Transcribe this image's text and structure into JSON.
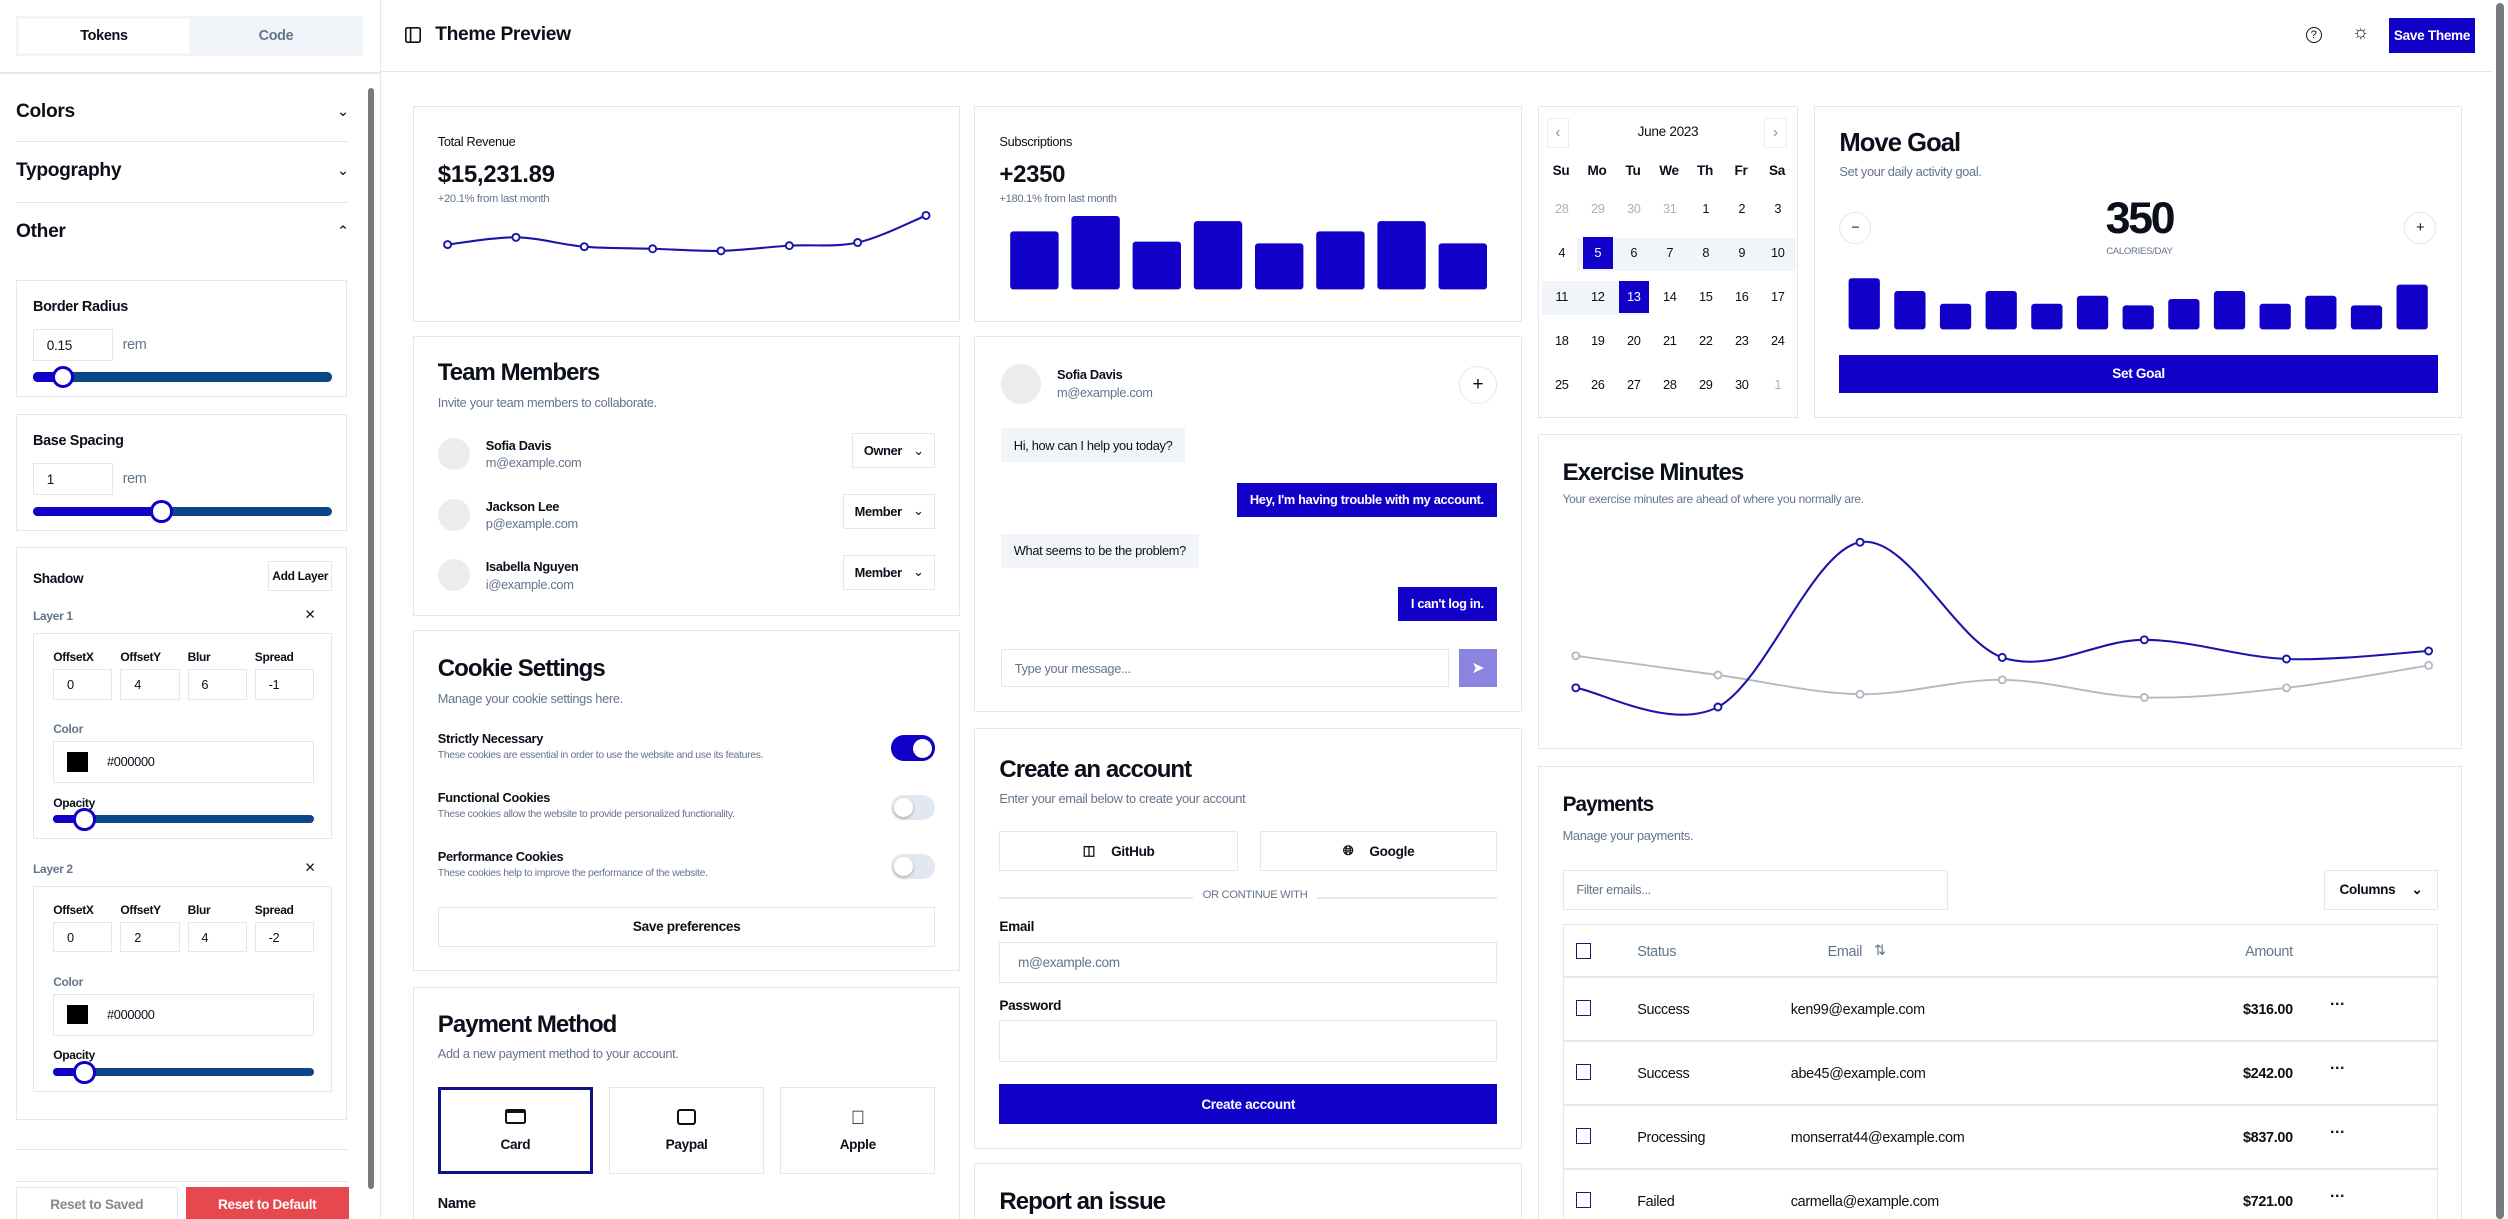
{
  "sidebar": {
    "tabs": [
      "Tokens",
      "Code"
    ],
    "sections": [
      "Colors",
      "Typography",
      "Other"
    ],
    "border_radius": {
      "label": "Border Radius",
      "value": "0.15",
      "unit": "rem",
      "slider_fraction": 0.1
    },
    "base_spacing": {
      "label": "Base Spacing",
      "value": "1",
      "unit": "rem",
      "slider_fraction": 0.43
    },
    "shadow": {
      "label": "Shadow",
      "add_layer": "Add Layer",
      "field_labels": [
        "OffsetX",
        "OffsetY",
        "Blur",
        "Spread"
      ],
      "color_label": "Color",
      "opacity_label": "Opacity",
      "layers": [
        {
          "name": "Layer 1",
          "values": [
            "0",
            "4",
            "6",
            "-1"
          ],
          "color": "#000000",
          "opacity_fraction": 0.12
        },
        {
          "name": "Layer 2",
          "values": [
            "0",
            "2",
            "4",
            "-2"
          ],
          "color": "#000000",
          "opacity_fraction": 0.12
        }
      ]
    },
    "reset_saved": "Reset to Saved",
    "reset_default": "Reset to Default"
  },
  "header": {
    "title": "Theme Preview",
    "save": "Save Theme"
  },
  "revenue": {
    "label": "Total Revenue",
    "value": "$15,231.89",
    "delta": "+20.1% from last month"
  },
  "subscriptions": {
    "label": "Subscriptions",
    "value": "+2350",
    "delta": "+180.1% from last month"
  },
  "team": {
    "title": "Team Members",
    "subtitle": "Invite your team members to collaborate.",
    "members": [
      {
        "name": "Sofia Davis",
        "email": "m@example.com",
        "role": "Owner"
      },
      {
        "name": "Jackson Lee",
        "email": "p@example.com",
        "role": "Member"
      },
      {
        "name": "Isabella Nguyen",
        "email": "i@example.com",
        "role": "Member"
      }
    ]
  },
  "cookies": {
    "title": "Cookie Settings",
    "subtitle": "Manage your cookie settings here.",
    "items": [
      {
        "title": "Strictly Necessary",
        "desc": "These cookies are essential in order to use the website and use its features.",
        "on": true
      },
      {
        "title": "Functional Cookies",
        "desc": "These cookies allow the website to provide personalized functionality.",
        "on": false
      },
      {
        "title": "Performance Cookies",
        "desc": "These cookies help to improve the performance of the website.",
        "on": false
      }
    ],
    "save": "Save preferences"
  },
  "payment_method": {
    "title": "Payment Method",
    "subtitle": "Add a new payment method to your account.",
    "options": [
      "Card",
      "Paypal",
      "Apple"
    ],
    "selected": "Card",
    "name_label": "Name"
  },
  "chat": {
    "name": "Sofia Davis",
    "email": "m@example.com",
    "messages": [
      {
        "from": "agent",
        "text": "Hi, how can I help you today?"
      },
      {
        "from": "user",
        "text": "Hey, I'm having trouble with my account."
      },
      {
        "from": "agent",
        "text": "What seems to be the problem?"
      },
      {
        "from": "user",
        "text": "I can't log in."
      }
    ],
    "placeholder": "Type your message..."
  },
  "create_account": {
    "title": "Create an account",
    "subtitle": "Enter your email below to create your account",
    "github": "GitHub",
    "google": "Google",
    "divider": "OR CONTINUE WITH",
    "email_label": "Email",
    "email_placeholder": "m@example.com",
    "password_label": "Password",
    "submit": "Create account"
  },
  "report": {
    "title": "Report an issue"
  },
  "calendar": {
    "month": "June 2023",
    "weekdays": [
      "Su",
      "Mo",
      "Tu",
      "We",
      "Th",
      "Fr",
      "Sa"
    ],
    "days": [
      "28",
      "29",
      "30",
      "31",
      "1",
      "2",
      "3",
      "4",
      "5",
      "6",
      "7",
      "8",
      "9",
      "10",
      "11",
      "12",
      "13",
      "14",
      "15",
      "16",
      "17",
      "18",
      "19",
      "20",
      "21",
      "22",
      "23",
      "24",
      "25",
      "26",
      "27",
      "28",
      "29",
      "30",
      "1"
    ],
    "selected": [
      "5",
      "13"
    ]
  },
  "move_goal": {
    "title": "Move Goal",
    "subtitle": "Set your daily activity goal.",
    "value": "350",
    "unit": "CALORIES/DAY",
    "button": "Set Goal"
  },
  "exercise": {
    "title": "Exercise Minutes",
    "subtitle": "Your exercise minutes are ahead of where you normally are."
  },
  "payments": {
    "title": "Payments",
    "subtitle": "Manage your payments.",
    "filter_placeholder": "Filter emails...",
    "columns_button": "Columns",
    "headers": [
      "Status",
      "Email",
      "Amount"
    ],
    "rows": [
      {
        "status": "Success",
        "email": "ken99@example.com",
        "amount": "$316.00"
      },
      {
        "status": "Success",
        "email": "abe45@example.com",
        "amount": "$242.00"
      },
      {
        "status": "Processing",
        "email": "monserrat44@example.com",
        "amount": "$837.00"
      },
      {
        "status": "Failed",
        "email": "carmella@example.com",
        "amount": "$721.00"
      }
    ]
  },
  "colors": {
    "primary": "#1100c8",
    "muted": "#64748b",
    "border": "#e2e8f0",
    "danger": "#e5484d",
    "secondary_line": "#b4b9c4"
  },
  "chart_data": [
    {
      "type": "line",
      "title": "Total Revenue",
      "x": [
        1,
        2,
        3,
        4,
        5,
        6,
        7,
        8
      ],
      "values": [
        40,
        47,
        38,
        36,
        34,
        39,
        42,
        68
      ],
      "ylim": [
        0,
        80
      ]
    },
    {
      "type": "bar",
      "title": "Subscriptions",
      "categories": [
        "1",
        "2",
        "3",
        "4",
        "5",
        "6",
        "7",
        "8"
      ],
      "values": [
        34,
        43,
        28,
        40,
        27,
        34,
        40,
        27
      ],
      "ylim": [
        0,
        45
      ]
    },
    {
      "type": "bar",
      "title": "Move Goal",
      "categories": [
        "1",
        "2",
        "3",
        "4",
        "5",
        "6",
        "7",
        "8",
        "9",
        "10",
        "11",
        "12",
        "13"
      ],
      "values": [
        32,
        24,
        16,
        24,
        16,
        21,
        15,
        19,
        24,
        16,
        21,
        15,
        28
      ],
      "ylim": [
        0,
        32
      ]
    },
    {
      "type": "line",
      "title": "Exercise Minutes",
      "x": [
        1,
        2,
        3,
        4,
        5,
        6,
        7
      ],
      "series": [
        {
          "name": "current",
          "values": [
            31,
            19,
            122,
            50,
            61,
            49,
            54
          ]
        },
        {
          "name": "average",
          "values": [
            51,
            39,
            27,
            36,
            25,
            31,
            45
          ]
        }
      ],
      "ylim": [
        0,
        130
      ]
    }
  ]
}
